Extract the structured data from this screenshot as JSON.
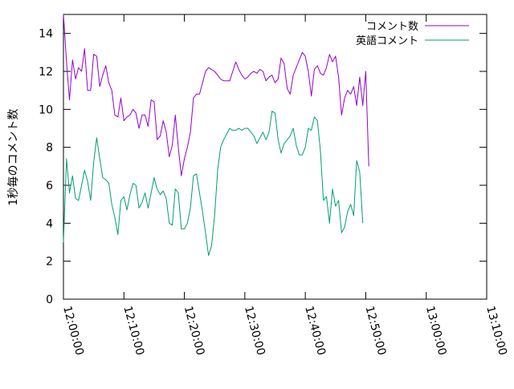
{
  "chart_data": {
    "type": "line",
    "title": "",
    "xlabel": "",
    "ylabel": "1秒毎のコメント数",
    "xlim": [
      "12:00:00",
      "13:10:00"
    ],
    "ylim": [
      0,
      15
    ],
    "grid": false,
    "legend_placement": "top-right",
    "x_ticks": [
      "12:00:00",
      "12:10:00",
      "12:20:00",
      "12:30:00",
      "12:40:00",
      "12:50:00",
      "13:00:00",
      "13:10:00"
    ],
    "y_ticks": [
      0,
      2,
      4,
      6,
      8,
      10,
      12,
      14
    ],
    "x_step_seconds": 30,
    "x_start": "12:00:00",
    "series": [
      {
        "name": "コメント数",
        "color": "#9400d3",
        "values": [
          15.0,
          12.5,
          10.5,
          12.6,
          11.6,
          12.2,
          12.0,
          13.2,
          11.0,
          11.0,
          12.9,
          12.8,
          11.2,
          11.8,
          12.3,
          11.4,
          11.0,
          9.7,
          9.6,
          10.6,
          9.4,
          9.6,
          9.7,
          10.0,
          9.8,
          9.0,
          9.7,
          9.7,
          9.1,
          10.5,
          10.4,
          8.4,
          8.6,
          9.4,
          8.8,
          7.5,
          8.1,
          9.7,
          8.0,
          6.5,
          7.4,
          8.0,
          8.8,
          10.6,
          10.8,
          10.8,
          11.4,
          12.0,
          12.2,
          12.1,
          12.0,
          11.8,
          11.6,
          11.5,
          11.5,
          11.5,
          12.0,
          12.5,
          12.1,
          11.8,
          11.6,
          11.7,
          11.9,
          12.0,
          11.9,
          12.1,
          12.0,
          11.5,
          11.7,
          11.8,
          11.4,
          11.6,
          12.7,
          12.4,
          11.1,
          10.8,
          11.8,
          12.2,
          12.6,
          13.0,
          12.8,
          12.0,
          10.7,
          12.1,
          12.3,
          11.9,
          11.8,
          12.2,
          12.9,
          12.5,
          12.8,
          11.7,
          9.7,
          10.6,
          11.0,
          10.8,
          11.2,
          10.2,
          11.7,
          10.2,
          12.0,
          7.0
        ]
      },
      {
        "name": "英語コメント",
        "color": "#009e73",
        "values": [
          3.0,
          7.4,
          5.6,
          6.5,
          5.3,
          5.2,
          6.0,
          6.8,
          6.2,
          5.2,
          7.2,
          8.5,
          7.4,
          6.4,
          6.3,
          6.1,
          5.0,
          4.3,
          3.4,
          5.2,
          5.4,
          4.7,
          5.5,
          6.1,
          6.0,
          4.8,
          5.1,
          5.6,
          4.8,
          5.6,
          6.4,
          5.8,
          5.5,
          5.7,
          5.3,
          4.0,
          3.9,
          5.8,
          5.6,
          3.7,
          3.7,
          4.0,
          4.8,
          6.5,
          6.6,
          5.6,
          4.6,
          3.5,
          2.3,
          2.8,
          4.4,
          6.8,
          8.0,
          8.4,
          8.7,
          9.0,
          8.9,
          8.9,
          9.0,
          8.9,
          9.0,
          9.0,
          8.8,
          8.6,
          8.2,
          8.5,
          8.8,
          8.4,
          8.8,
          9.9,
          9.8,
          8.4,
          7.7,
          8.2,
          8.4,
          8.6,
          9.0,
          8.1,
          7.6,
          7.6,
          8.0,
          9.0,
          8.9,
          9.6,
          9.4,
          7.8,
          5.2,
          5.4,
          4.0,
          5.8,
          4.9,
          5.2,
          3.5,
          3.8,
          4.6,
          5.0,
          4.4,
          7.3,
          6.7,
          4.0
        ]
      }
    ]
  }
}
